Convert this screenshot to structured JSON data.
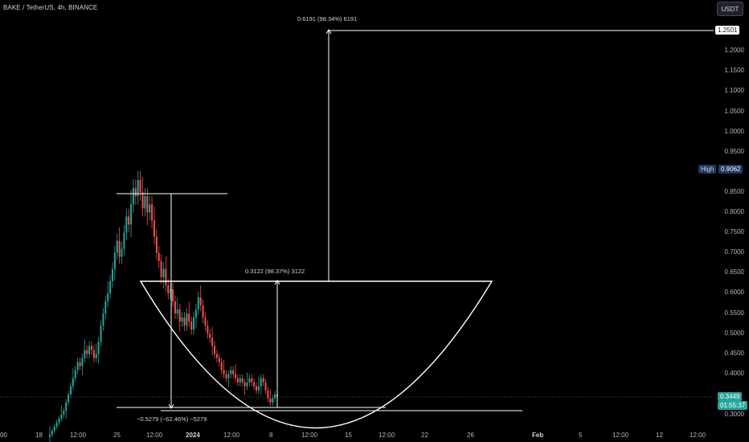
{
  "header": {
    "symbol_title": "BAKE / TetherUS, 4h, BINANCE",
    "currency_button": "USDT"
  },
  "price_axis": {
    "labels": [
      "1.2000",
      "1.1500",
      "1.1000",
      "1.0500",
      "1.0000",
      "0.9500",
      "0.8500",
      "0.8000",
      "0.7500",
      "0.7000",
      "0.6500",
      "0.6000",
      "0.5500",
      "0.5000",
      "0.4500",
      "0.4000",
      "0.3000"
    ],
    "target_badge": "1.2501",
    "high_label": "High",
    "high_value": "0.9062",
    "last_price": "0.3449",
    "countdown": "01:55:37"
  },
  "time_axis": {
    "labels": [
      "00",
      "18",
      "12:00",
      "25",
      "12:00",
      "2024",
      "12:00",
      "8",
      "12:00",
      "15",
      "12:00",
      "22",
      "26",
      "Feb",
      "5",
      "12:00",
      "12",
      "12:00"
    ]
  },
  "measurements": {
    "upper_projection": "0.6191 (98.34%) 6191",
    "cup_projection": "0.3122 (98.37%) 3122",
    "drop": "−0.5279 (−62.46%) −5279"
  },
  "colors": {
    "background": "#000000",
    "up_candle": "#26a69a",
    "down_candle": "#ef5350",
    "drawing": "#ffffff",
    "last_price_badge": "#26a69a",
    "high_badge": "#1e3a5f"
  },
  "chart_data": {
    "type": "candlestick",
    "symbol": "BAKE / TetherUS",
    "interval": "4h",
    "exchange": "BINANCE",
    "currency": "USDT",
    "last_price": 0.3449,
    "high": 0.9062,
    "y_ticks": [
      0.3,
      0.4,
      0.45,
      0.5,
      0.55,
      0.6,
      0.65,
      0.7,
      0.75,
      0.8,
      0.85,
      0.95,
      1.0,
      1.05,
      1.1,
      1.15,
      1.2
    ],
    "close_series": [
      0.25,
      0.26,
      0.27,
      0.28,
      0.29,
      0.3,
      0.31,
      0.33,
      0.35,
      0.37,
      0.39,
      0.41,
      0.43,
      0.42,
      0.44,
      0.46,
      0.45,
      0.47,
      0.46,
      0.44,
      0.45,
      0.48,
      0.52,
      0.55,
      0.58,
      0.6,
      0.63,
      0.66,
      0.7,
      0.73,
      0.69,
      0.71,
      0.75,
      0.79,
      0.77,
      0.82,
      0.86,
      0.84,
      0.88,
      0.85,
      0.81,
      0.84,
      0.8,
      0.82,
      0.78,
      0.74,
      0.7,
      0.68,
      0.64,
      0.66,
      0.62,
      0.6,
      0.61,
      0.58,
      0.55,
      0.56,
      0.53,
      0.54,
      0.52,
      0.55,
      0.53,
      0.51,
      0.54,
      0.56,
      0.59,
      0.57,
      0.54,
      0.52,
      0.5,
      0.49,
      0.47,
      0.45,
      0.44,
      0.43,
      0.41,
      0.4,
      0.39,
      0.4,
      0.41,
      0.4,
      0.39,
      0.38,
      0.39,
      0.38,
      0.37,
      0.38,
      0.39,
      0.38,
      0.37,
      0.36,
      0.37,
      0.39,
      0.38,
      0.36,
      0.34,
      0.33,
      0.34,
      0.35,
      0.3449
    ],
    "drawings": {
      "cup_rim": 0.63,
      "cup_bottom": 0.29,
      "drop_from": 0.845,
      "drop_to": 0.316,
      "target": 1.2501
    }
  }
}
